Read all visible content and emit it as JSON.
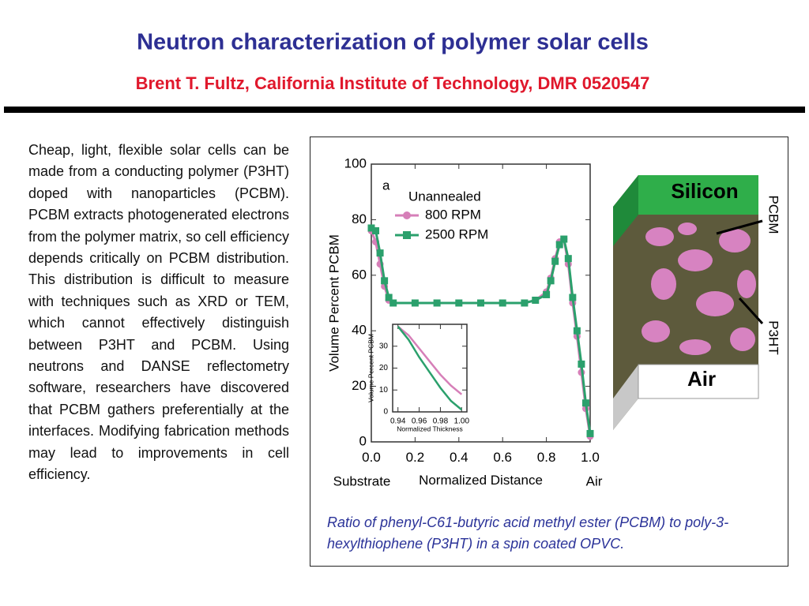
{
  "header": {
    "title": "Neutron characterization of polymer solar cells",
    "subtitle": "Brent T. Fultz, California Institute of Technology, DMR 0520547"
  },
  "body": "Cheap, light, flexible solar cells can be made from a conducting polymer (P3HT) doped with nanoparticles (PCBM). PCBM extracts photogenerated electrons from the polymer matrix, so cell efficiency depends critically on PCBM distribution. This distribution is difficult to measure with techniques such as XRD or TEM, which cannot effectively distinguish between P3HT and PCBM. Using neutrons and DANSE reflectometry software, researchers have discovered that PCBM gathers preferentially at the interfaces. Modifying fabrication methods may lead to improvements in cell efficiency.",
  "chart_data": [
    {
      "type": "line",
      "panel_label": "a",
      "legend_title": "Unannealed",
      "x_label": "Normalized Distance",
      "y_label": "Volume Percent PCBM",
      "x_start_label": "Substrate",
      "x_end_label": "Air",
      "x": [
        0,
        0.02,
        0.04,
        0.06,
        0.08,
        0.1,
        0.2,
        0.3,
        0.4,
        0.5,
        0.6,
        0.7,
        0.75,
        0.8,
        0.82,
        0.84,
        0.86,
        0.88,
        0.9,
        0.92,
        0.94,
        0.96,
        0.98,
        1.0
      ],
      "series": [
        {
          "name": "800 RPM",
          "color": "#d67fb8",
          "marker": "circle",
          "values": [
            76,
            72,
            64,
            56,
            51,
            50,
            50,
            50,
            50,
            50,
            50,
            50,
            51,
            54,
            59,
            66,
            72,
            73,
            64,
            50,
            38,
            25,
            12,
            2
          ]
        },
        {
          "name": "2500 RPM",
          "color": "#2ba06c",
          "marker": "square",
          "values": [
            77,
            76,
            68,
            58,
            52,
            50,
            50,
            50,
            50,
            50,
            50,
            50,
            51,
            53,
            58,
            65,
            71,
            73,
            66,
            52,
            40,
            28,
            14,
            3
          ]
        }
      ],
      "xlim": [
        0,
        1
      ],
      "ylim": [
        0,
        100
      ],
      "xticks": [
        {
          "value": 0,
          "label": "0.0"
        },
        0.2,
        0.4,
        0.6,
        0.8,
        {
          "value": 1,
          "label": "1.0"
        }
      ],
      "yticks": [
        0,
        20,
        40,
        60,
        80,
        100
      ]
    },
    {
      "type": "line",
      "x_label": "Normalized Thickness",
      "y_label": "Volume Percent PCBM",
      "x": [
        0.94,
        0.95,
        0.96,
        0.97,
        0.98,
        0.99,
        1.0
      ],
      "series": [
        {
          "name": "800 RPM",
          "color": "#d67fb8",
          "values": [
            39,
            35,
            29,
            23,
            17,
            12,
            8
          ]
        },
        {
          "name": "2500 RPM",
          "color": "#2ba06c",
          "values": [
            39,
            33,
            25,
            18,
            11,
            5,
            1
          ]
        }
      ],
      "xlim": [
        0.935,
        1.005
      ],
      "ylim": [
        0,
        40
      ],
      "xticks": [
        0.94,
        0.96,
        0.98,
        {
          "value": 1,
          "label": "1.00"
        }
      ],
      "yticks": [
        0,
        10,
        20,
        30
      ]
    }
  ],
  "diagram": {
    "top": "Silicon",
    "bottom": "Air",
    "arrow_1": "PCBM",
    "arrow_2": "P3HT"
  },
  "caption": "Ratio of phenyl-C61-butyric acid methyl ester (PCBM) to poly-3-hexylthiophene (P3HT) in a spin coated OPVC."
}
